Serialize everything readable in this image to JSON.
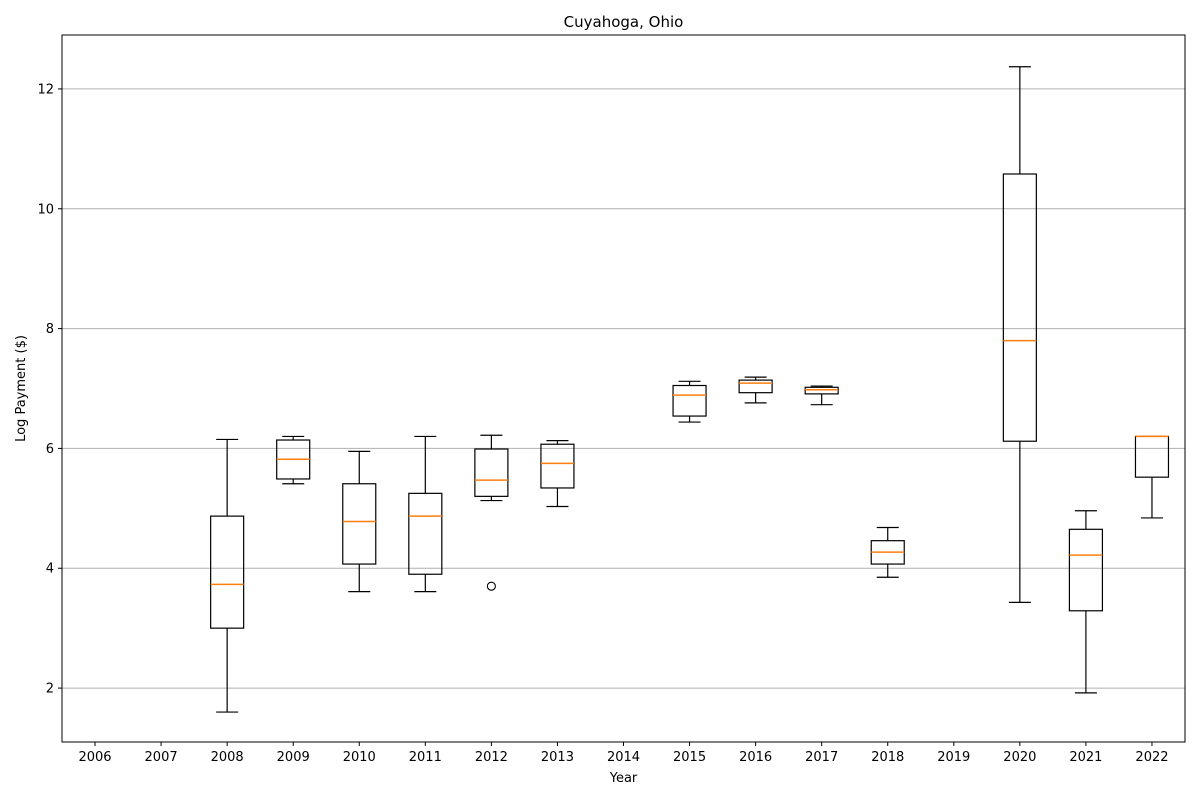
{
  "chart_data": {
    "type": "box",
    "title": "Cuyahoga, Ohio",
    "xlabel": "Year",
    "ylabel": "Log Payment ($)",
    "ylim": [
      1.1,
      12.9
    ],
    "yticks": [
      2,
      4,
      6,
      8,
      10,
      12
    ],
    "grid": "y",
    "categories": [
      "2006",
      "2007",
      "2008",
      "2009",
      "2010",
      "2011",
      "2012",
      "2013",
      "2014",
      "2015",
      "2016",
      "2017",
      "2018",
      "2019",
      "2020",
      "2021",
      "2022"
    ],
    "boxes": [
      {
        "category": "2006",
        "whislo": null,
        "q1": null,
        "med": null,
        "q3": null,
        "whishi": null,
        "fliers": []
      },
      {
        "category": "2007",
        "whislo": null,
        "q1": null,
        "med": null,
        "q3": null,
        "whishi": null,
        "fliers": []
      },
      {
        "category": "2008",
        "whislo": 1.6,
        "q1": 3.0,
        "med": 3.73,
        "q3": 4.87,
        "whishi": 6.15,
        "fliers": []
      },
      {
        "category": "2009",
        "whislo": 5.41,
        "q1": 5.49,
        "med": 5.82,
        "q3": 6.14,
        "whishi": 6.2,
        "fliers": []
      },
      {
        "category": "2010",
        "whislo": 3.61,
        "q1": 4.07,
        "med": 4.78,
        "q3": 5.41,
        "whishi": 5.95,
        "fliers": []
      },
      {
        "category": "2011",
        "whislo": 3.61,
        "q1": 3.9,
        "med": 4.87,
        "q3": 5.25,
        "whishi": 6.2,
        "fliers": []
      },
      {
        "category": "2012",
        "whislo": 5.13,
        "q1": 5.2,
        "med": 5.47,
        "q3": 5.99,
        "whishi": 6.22,
        "fliers": [
          3.7
        ]
      },
      {
        "category": "2013",
        "whislo": 5.03,
        "q1": 5.34,
        "med": 5.75,
        "q3": 6.07,
        "whishi": 6.13,
        "fliers": []
      },
      {
        "category": "2014",
        "whislo": null,
        "q1": null,
        "med": null,
        "q3": null,
        "whishi": null,
        "fliers": []
      },
      {
        "category": "2015",
        "whislo": 6.44,
        "q1": 6.54,
        "med": 6.89,
        "q3": 7.05,
        "whishi": 7.12,
        "fliers": []
      },
      {
        "category": "2016",
        "whislo": 6.76,
        "q1": 6.93,
        "med": 7.09,
        "q3": 7.14,
        "whishi": 7.19,
        "fliers": []
      },
      {
        "category": "2017",
        "whislo": 6.73,
        "q1": 6.91,
        "med": 6.98,
        "q3": 7.02,
        "whishi": 7.04,
        "fliers": []
      },
      {
        "category": "2018",
        "whislo": 3.85,
        "q1": 4.07,
        "med": 4.27,
        "q3": 4.46,
        "whishi": 4.68,
        "fliers": []
      },
      {
        "category": "2019",
        "whislo": null,
        "q1": null,
        "med": null,
        "q3": null,
        "whishi": null,
        "fliers": []
      },
      {
        "category": "2020",
        "whislo": 3.43,
        "q1": 6.12,
        "med": 7.8,
        "q3": 10.58,
        "whishi": 12.37,
        "fliers": []
      },
      {
        "category": "2021",
        "whislo": 1.92,
        "q1": 3.29,
        "med": 4.22,
        "q3": 4.65,
        "whishi": 4.96,
        "fliers": []
      },
      {
        "category": "2022",
        "whislo": 4.84,
        "q1": 5.52,
        "med": 6.2,
        "q3": 6.2,
        "whishi": 6.2,
        "fliers": []
      }
    ],
    "colors": {
      "box": "#000000",
      "median": "#ff7f0e",
      "grid": "#b0b0b0"
    }
  }
}
